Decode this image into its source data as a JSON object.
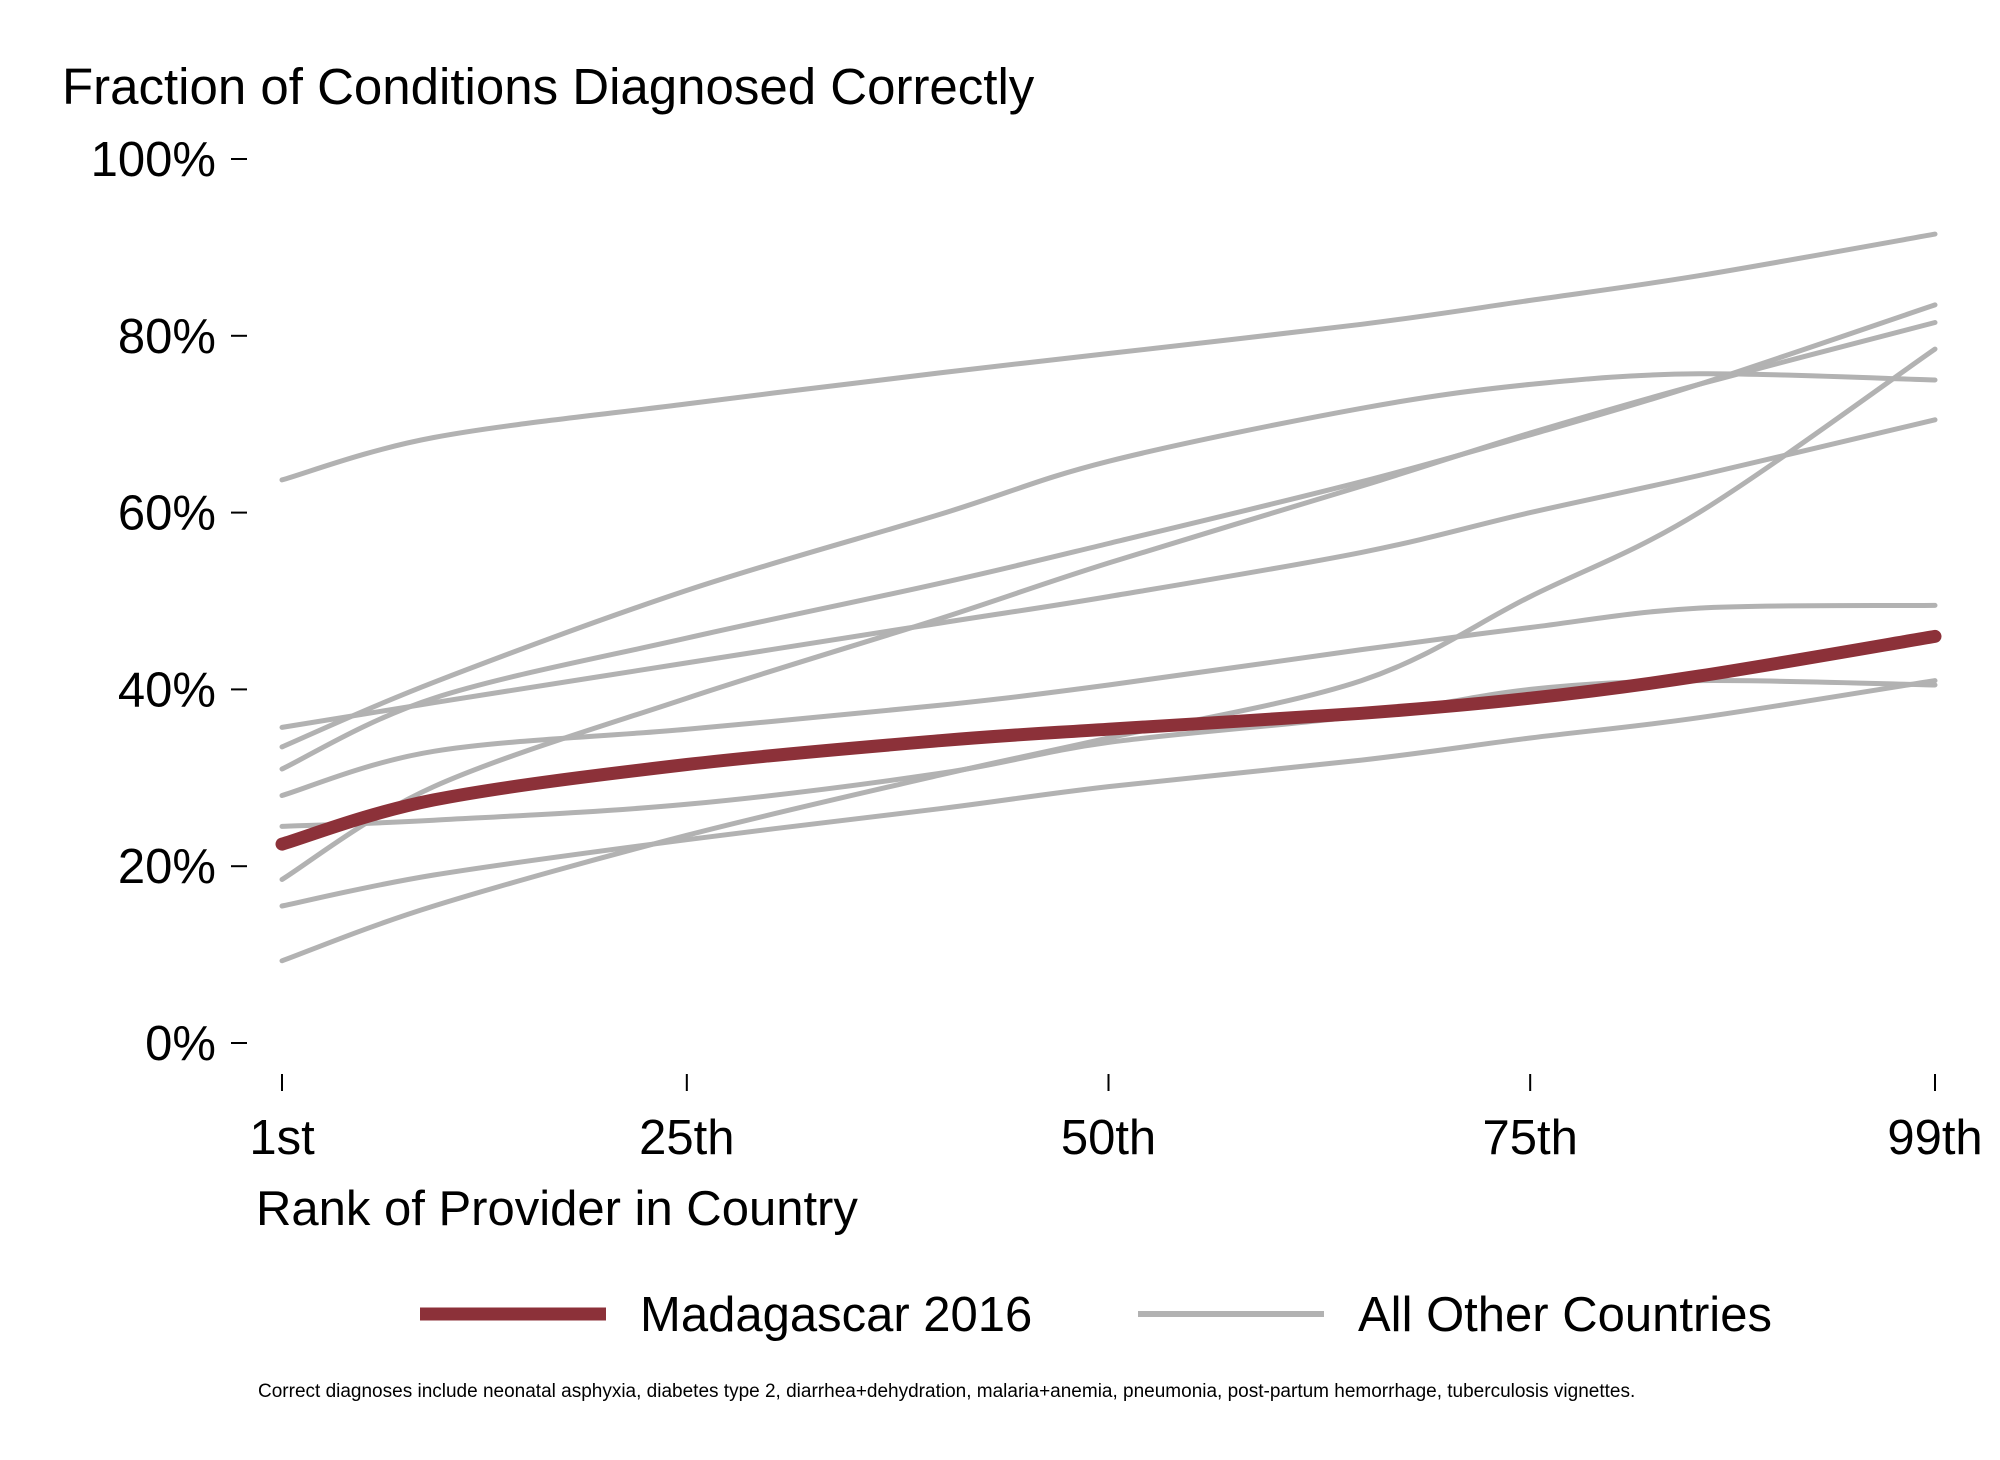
{
  "chart_data": {
    "type": "line",
    "title": "Fraction of Conditions Diagnosed Correctly",
    "xlabel": "Rank of Provider in Country",
    "ylabel": "",
    "x_ticks": [
      {
        "value": 1,
        "label": "1st"
      },
      {
        "value": 25,
        "label": "25th"
      },
      {
        "value": 50,
        "label": "50th"
      },
      {
        "value": 75,
        "label": "75th"
      },
      {
        "value": 99,
        "label": "99th"
      }
    ],
    "y_ticks": [
      {
        "value": 0,
        "label": "0%"
      },
      {
        "value": 20,
        "label": "20%"
      },
      {
        "value": 40,
        "label": "40%"
      },
      {
        "value": 60,
        "label": "60%"
      },
      {
        "value": 80,
        "label": "80%"
      },
      {
        "value": 100,
        "label": "100%"
      }
    ],
    "xlim": [
      1,
      99
    ],
    "ylim": [
      0,
      100
    ],
    "grid": false,
    "legend_position": "bottom",
    "colors": {
      "highlight": "#8c3139",
      "other": "#b2b2b2"
    },
    "legend": [
      {
        "label": "Madagascar 2016",
        "style": "highlight"
      },
      {
        "label": "All Other Countries",
        "style": "other"
      }
    ],
    "series": [
      {
        "name": "Madagascar 2016",
        "style": "highlight",
        "x": [
          1,
          10,
          25,
          40,
          50,
          65,
          75,
          85,
          99
        ],
        "y": [
          22.5,
          27.5,
          31.5,
          34.2,
          35.5,
          37.3,
          39.0,
          41.5,
          46.0
        ]
      },
      {
        "style": "other",
        "x": [
          1,
          10,
          25,
          40,
          50,
          65,
          75,
          85,
          99
        ],
        "y": [
          63.7,
          68.5,
          72.3,
          75.8,
          78.0,
          81.3,
          84.0,
          86.8,
          91.5
        ]
      },
      {
        "style": "other",
        "x": [
          1,
          10,
          25,
          40,
          50,
          65,
          75,
          85,
          99
        ],
        "y": [
          33.5,
          40.8,
          51.2,
          59.8,
          65.8,
          71.8,
          74.5,
          75.7,
          75.0
        ]
      },
      {
        "style": "other",
        "x": [
          1,
          10,
          25,
          40,
          50,
          65,
          75,
          85,
          99
        ],
        "y": [
          31.0,
          39.0,
          45.8,
          52.0,
          56.5,
          63.5,
          68.8,
          74.5,
          83.5
        ]
      },
      {
        "style": "other",
        "x": [
          1,
          10,
          25,
          40,
          50,
          65,
          75,
          85,
          99
        ],
        "y": [
          18.5,
          29.0,
          39.0,
          48.0,
          54.3,
          63.0,
          69.0,
          74.5,
          81.5
        ]
      },
      {
        "style": "other",
        "x": [
          1,
          10,
          25,
          40,
          50,
          65,
          75,
          85,
          99
        ],
        "y": [
          35.7,
          38.5,
          43.0,
          47.5,
          50.5,
          55.5,
          60.0,
          64.2,
          70.5
        ]
      },
      {
        "style": "other",
        "x": [
          1,
          10,
          25,
          40,
          50,
          65,
          75,
          85,
          99
        ],
        "y": [
          9.3,
          15.5,
          23.5,
          30.3,
          34.5,
          41.0,
          50.5,
          60.0,
          78.5
        ]
      },
      {
        "style": "other",
        "x": [
          1,
          10,
          25,
          40,
          50,
          65,
          75,
          85,
          99
        ],
        "y": [
          28.0,
          33.0,
          35.5,
          38.2,
          40.5,
          44.5,
          47.0,
          49.2,
          49.5
        ]
      },
      {
        "style": "other",
        "x": [
          1,
          10,
          25,
          40,
          50,
          65,
          75,
          85,
          99
        ],
        "y": [
          24.5,
          25.2,
          27.0,
          30.5,
          34.0,
          37.0,
          40.0,
          41.0,
          40.5
        ]
      },
      {
        "style": "other",
        "x": [
          1,
          10,
          25,
          40,
          50,
          65,
          75,
          85,
          99
        ],
        "y": [
          15.5,
          19.0,
          23.0,
          26.5,
          29.0,
          32.0,
          34.5,
          36.8,
          41.0
        ]
      }
    ],
    "footnote": "Correct diagnoses include neonatal asphyxia, diabetes type 2, diarrhea+dehydration, malaria+anemia, pneumonia, post-partum hemorrhage, tuberculosis vignettes."
  }
}
